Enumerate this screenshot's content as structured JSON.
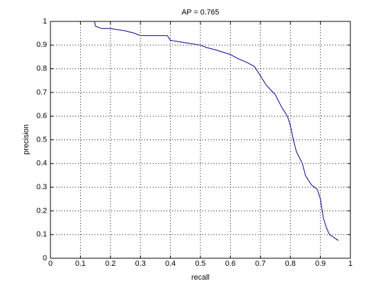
{
  "chart_data": {
    "type": "line",
    "title": "AP = 0.765",
    "xlabel": "recall",
    "ylabel": "precision",
    "x": [
      0.147,
      0.15,
      0.17,
      0.2,
      0.25,
      0.28,
      0.3,
      0.35,
      0.39,
      0.4,
      0.45,
      0.5,
      0.52,
      0.55,
      0.6,
      0.63,
      0.65,
      0.68,
      0.7,
      0.72,
      0.75,
      0.77,
      0.79,
      0.8,
      0.81,
      0.82,
      0.84,
      0.85,
      0.87,
      0.89,
      0.9,
      0.91,
      0.92,
      0.93,
      0.96
    ],
    "series": [
      {
        "color": "#00008b",
        "values": [
          1.0,
          0.98,
          0.97,
          0.97,
          0.96,
          0.95,
          0.94,
          0.94,
          0.94,
          0.92,
          0.91,
          0.9,
          0.89,
          0.88,
          0.86,
          0.84,
          0.83,
          0.81,
          0.77,
          0.73,
          0.69,
          0.64,
          0.6,
          0.56,
          0.5,
          0.45,
          0.4,
          0.35,
          0.31,
          0.29,
          0.25,
          0.17,
          0.13,
          0.1,
          0.075
        ]
      }
    ],
    "xlim": [
      0,
      1
    ],
    "ylim": [
      0,
      1
    ],
    "xticks": [
      0,
      0.1,
      0.2,
      0.3,
      0.4,
      0.5,
      0.6,
      0.7,
      0.8,
      0.9,
      1
    ],
    "yticks": [
      0,
      0.1,
      0.2,
      0.3,
      0.4,
      0.5,
      0.6,
      0.7,
      0.8,
      0.9,
      1
    ],
    "grid": true
  }
}
